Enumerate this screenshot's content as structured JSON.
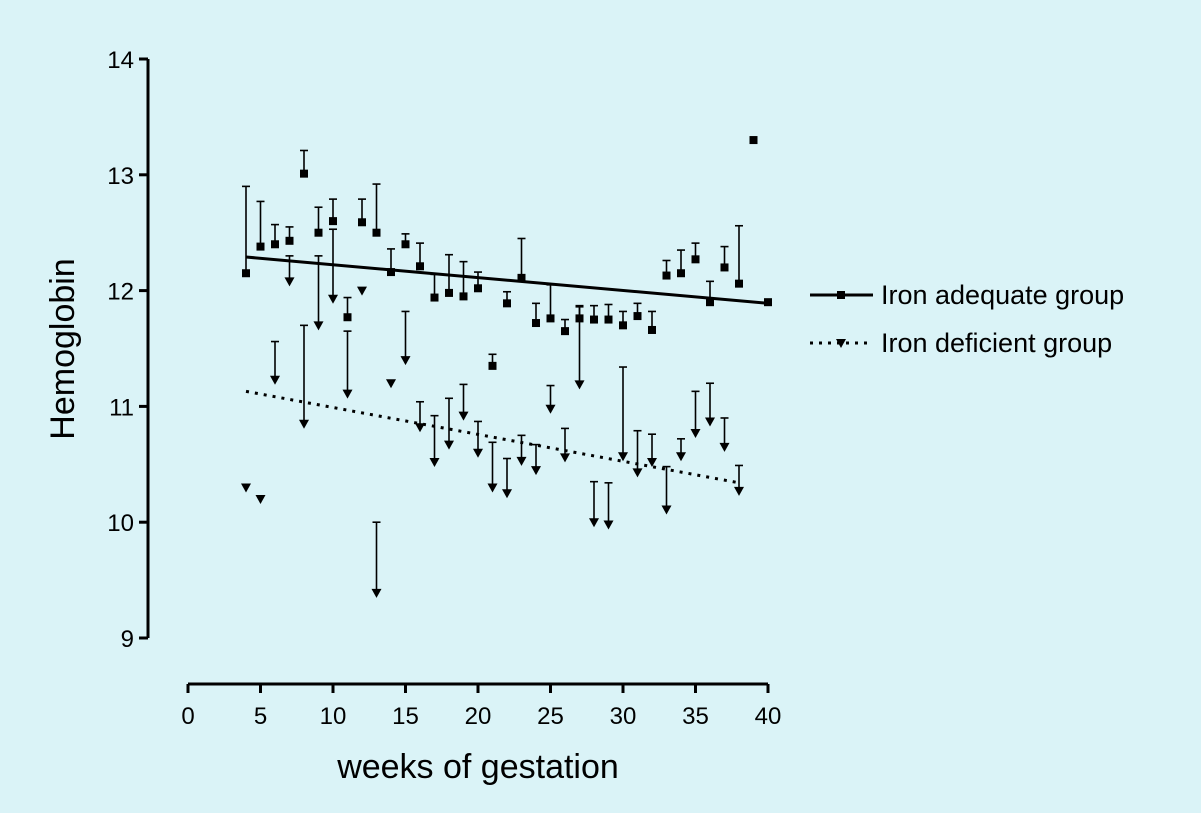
{
  "chart_data": {
    "type": "scatter",
    "xlabel": "weeks of gestation",
    "ylabel": "Hemoglobin",
    "xlim": [
      0,
      40
    ],
    "ylim": [
      9,
      14
    ],
    "x_ticks": [
      0,
      5,
      10,
      15,
      20,
      25,
      30,
      35,
      40
    ],
    "y_ticks": [
      9,
      10,
      11,
      12,
      13,
      14
    ],
    "grid": false,
    "legend_position": "right",
    "series": [
      {
        "name": "Iron adequate group",
        "marker": "square",
        "error_bar_direction": "up",
        "points": [
          {
            "x": 4,
            "y": 12.15,
            "err": 0.75
          },
          {
            "x": 5,
            "y": 12.38,
            "err": 0.39
          },
          {
            "x": 6,
            "y": 12.4,
            "err": 0.17
          },
          {
            "x": 7,
            "y": 12.43,
            "err": 0.12
          },
          {
            "x": 8,
            "y": 13.01,
            "err": 0.2
          },
          {
            "x": 9,
            "y": 12.5,
            "err": 0.22
          },
          {
            "x": 10,
            "y": 12.6,
            "err": 0.19
          },
          {
            "x": 11,
            "y": 11.77,
            "err": 0.17
          },
          {
            "x": 12,
            "y": 12.59,
            "err": 0.2
          },
          {
            "x": 13,
            "y": 12.5,
            "err": 0.42
          },
          {
            "x": 14,
            "y": 12.16,
            "err": 0.2
          },
          {
            "x": 15,
            "y": 12.4,
            "err": 0.09
          },
          {
            "x": 16,
            "y": 12.21,
            "err": 0.2
          },
          {
            "x": 17,
            "y": 11.94,
            "err": 0.2
          },
          {
            "x": 18,
            "y": 11.98,
            "err": 0.33
          },
          {
            "x": 19,
            "y": 11.95,
            "err": 0.3
          },
          {
            "x": 20,
            "y": 12.02,
            "err": 0.14
          },
          {
            "x": 21,
            "y": 11.35,
            "err": 0.1
          },
          {
            "x": 22,
            "y": 11.89,
            "err": 0.1
          },
          {
            "x": 23,
            "y": 12.11,
            "err": 0.34
          },
          {
            "x": 24,
            "y": 11.72,
            "err": 0.17
          },
          {
            "x": 25,
            "y": 11.76,
            "err": 0.29
          },
          {
            "x": 26,
            "y": 11.65,
            "err": 0.1
          },
          {
            "x": 27,
            "y": 11.76,
            "err": 0.1
          },
          {
            "x": 28,
            "y": 11.75,
            "err": 0.12
          },
          {
            "x": 29,
            "y": 11.75,
            "err": 0.13
          },
          {
            "x": 30,
            "y": 11.7,
            "err": 0.12
          },
          {
            "x": 31,
            "y": 11.78,
            "err": 0.11
          },
          {
            "x": 32,
            "y": 11.66,
            "err": 0.16
          },
          {
            "x": 33,
            "y": 12.13,
            "err": 0.13
          },
          {
            "x": 34,
            "y": 12.15,
            "err": 0.2
          },
          {
            "x": 35,
            "y": 12.27,
            "err": 0.14
          },
          {
            "x": 36,
            "y": 11.9,
            "err": 0.18
          },
          {
            "x": 37,
            "y": 12.2,
            "err": 0.18
          },
          {
            "x": 38,
            "y": 12.06,
            "err": 0.5
          },
          {
            "x": 39,
            "y": 13.3,
            "err": 0
          },
          {
            "x": 40,
            "y": 11.9,
            "err": 0
          }
        ],
        "fit_line": {
          "x": [
            4,
            40
          ],
          "y": [
            12.29,
            11.89
          ]
        },
        "line_style": "solid"
      },
      {
        "name": "Iron deficient group",
        "marker": "triangle-down",
        "error_bar_direction": "up",
        "points": [
          {
            "x": 4,
            "y": 10.3,
            "err": 0
          },
          {
            "x": 5,
            "y": 10.2,
            "err": 0
          },
          {
            "x": 6,
            "y": 11.23,
            "err": 0.33
          },
          {
            "x": 7,
            "y": 12.08,
            "err": 0.22
          },
          {
            "x": 8,
            "y": 10.85,
            "err": 0.85
          },
          {
            "x": 9,
            "y": 11.7,
            "err": 0.6
          },
          {
            "x": 10,
            "y": 11.93,
            "err": 0.6
          },
          {
            "x": 11,
            "y": 11.11,
            "err": 0.54
          },
          {
            "x": 12,
            "y": 12.0,
            "err": 0
          },
          {
            "x": 13,
            "y": 9.39,
            "err": 0.61
          },
          {
            "x": 14,
            "y": 11.2,
            "err": 0
          },
          {
            "x": 15,
            "y": 11.4,
            "err": 0.42
          },
          {
            "x": 16,
            "y": 10.82,
            "err": 0.22
          },
          {
            "x": 17,
            "y": 10.52,
            "err": 0.4
          },
          {
            "x": 18,
            "y": 10.67,
            "err": 0.4
          },
          {
            "x": 19,
            "y": 10.92,
            "err": 0.27
          },
          {
            "x": 20,
            "y": 10.6,
            "err": 0.27
          },
          {
            "x": 21,
            "y": 10.3,
            "err": 0.39
          },
          {
            "x": 22,
            "y": 10.25,
            "err": 0.3
          },
          {
            "x": 23,
            "y": 10.53,
            "err": 0.22
          },
          {
            "x": 24,
            "y": 10.45,
            "err": 0.22
          },
          {
            "x": 25,
            "y": 10.98,
            "err": 0.2
          },
          {
            "x": 26,
            "y": 10.56,
            "err": 0.25
          },
          {
            "x": 27,
            "y": 11.19,
            "err": 0.68
          },
          {
            "x": 28,
            "y": 10.0,
            "err": 0.35
          },
          {
            "x": 29,
            "y": 9.98,
            "err": 0.36
          },
          {
            "x": 30,
            "y": 10.57,
            "err": 0.77
          },
          {
            "x": 31,
            "y": 10.43,
            "err": 0.36
          },
          {
            "x": 32,
            "y": 10.52,
            "err": 0.24
          },
          {
            "x": 33,
            "y": 10.11,
            "err": 0.37
          },
          {
            "x": 34,
            "y": 10.57,
            "err": 0.15
          },
          {
            "x": 35,
            "y": 10.77,
            "err": 0.36
          },
          {
            "x": 36,
            "y": 10.87,
            "err": 0.33
          },
          {
            "x": 37,
            "y": 10.65,
            "err": 0.25
          },
          {
            "x": 38,
            "y": 10.27,
            "err": 0.22
          }
        ],
        "fit_line": {
          "x": [
            4,
            38
          ],
          "y": [
            11.13,
            10.34
          ]
        },
        "line_style": "dotted"
      }
    ]
  }
}
